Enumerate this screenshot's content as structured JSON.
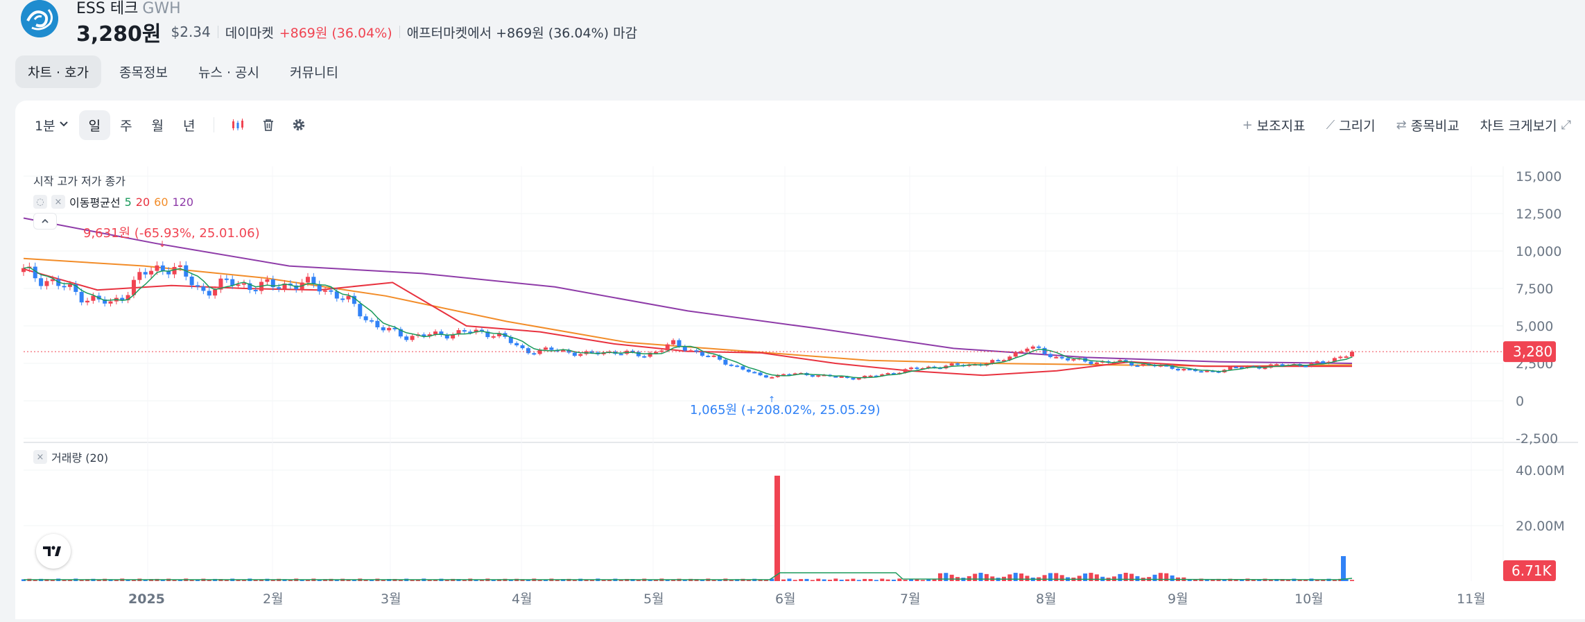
{
  "header": {
    "name": "ESS 테크",
    "ticker": "GWH",
    "price": "3,280원",
    "usd_price": "$2.34",
    "market_label": "데이마켓",
    "change": "+869원 (36.04%)",
    "after_market": "애프터마켓에서 +869원 (36.04%) 마감"
  },
  "tabs": [
    {
      "label": "차트 · 호가",
      "active": true
    },
    {
      "label": "종목정보"
    },
    {
      "label": "뉴스 · 공시"
    },
    {
      "label": "커뮤니티"
    }
  ],
  "toolbar": {
    "interval": "1분",
    "periods": [
      "일",
      "주",
      "월",
      "년"
    ],
    "active_period": "일",
    "right": [
      "보조지표",
      "그리기",
      "종목비교",
      "차트 크게보기"
    ]
  },
  "legend": {
    "ohlc": "시작 고가 저가 종가",
    "ma_label": "이동평균선",
    "ma_values": [
      "5",
      "20",
      "60",
      "120"
    ],
    "ma_colors": [
      "#1a9a5b",
      "#e8323f",
      "#f28c28",
      "#8e3ba8"
    ],
    "collapse_icon": "chevron-up-icon",
    "volume_label": "거래량 (20)"
  },
  "annotations": {
    "high": "9,631원 (-65.93%, 25.01.06)",
    "low": "1,065원 (+208.02%, 25.05.29)"
  },
  "price_axis": {
    "labels": [
      "15,000",
      "12,500",
      "10,000",
      "7,500",
      "5,000",
      "2,500",
      "0",
      "-2,500"
    ],
    "current": "3,280"
  },
  "volume_axis": {
    "labels": [
      "40.00M",
      "20.00M"
    ],
    "current": "6.71K"
  },
  "x_axis": {
    "labels": [
      "2025",
      "2월",
      "3월",
      "4월",
      "5월",
      "6월",
      "7월",
      "8월",
      "9월",
      "10월",
      "11월"
    ]
  },
  "colors": {
    "up": "#f04452",
    "down": "#3182f6",
    "accent": "#f04452"
  },
  "chart_data": {
    "type": "candlestick",
    "y_range": [
      -2500,
      15000
    ],
    "volume_range": [
      0,
      40000000
    ],
    "x_labels": [
      "2025",
      "2월",
      "3월",
      "4월",
      "5월",
      "6월",
      "7월",
      "8월",
      "9월",
      "10월",
      "11월"
    ],
    "series": [
      {
        "name": "5",
        "close_trend": [
          8600,
          7900,
          7000,
          6400,
          8400,
          9100,
          7300,
          7900,
          7600,
          7800,
          7700,
          6600,
          4900,
          4300,
          4400,
          4600,
          4500,
          3300,
          3400,
          3100,
          3300,
          3000,
          3800,
          3100,
          2400,
          1600,
          1800,
          1700,
          1500,
          1700,
          2100,
          2300,
          2400,
          2600,
          3600,
          2900,
          2600,
          2600,
          2400,
          2200,
          1900,
          2200,
          2300,
          2400,
          2500,
          3280
        ]
      },
      {
        "name": "20",
        "values": [
          8800,
          7400,
          7700,
          7500,
          7400,
          7900,
          5000,
          4600,
          3800,
          3300,
          3200,
          2500,
          2000,
          1700,
          2000,
          2600,
          2300,
          2300,
          2300
        ]
      },
      {
        "name": "60",
        "values": [
          9500,
          9000,
          8200,
          7000,
          5300,
          3900,
          3300,
          2700,
          2500,
          2400,
          2300,
          2400
        ]
      },
      {
        "name": "120",
        "values": [
          12200,
          10500,
          9000,
          8500,
          7600,
          6000,
          4800,
          3500,
          2900,
          2600,
          2500
        ]
      }
    ],
    "current_price": 3280,
    "high": {
      "value": 9631,
      "label": "9,631원 (-65.93%, 25.01.06)"
    },
    "low": {
      "value": 1065,
      "label": "1,065원 (+208.02%, 25.05.29)"
    },
    "volume": {
      "spike": {
        "date": "25.05.29",
        "value": 38000000
      },
      "last": {
        "value": 9000000
      },
      "current": "6.71K"
    }
  }
}
